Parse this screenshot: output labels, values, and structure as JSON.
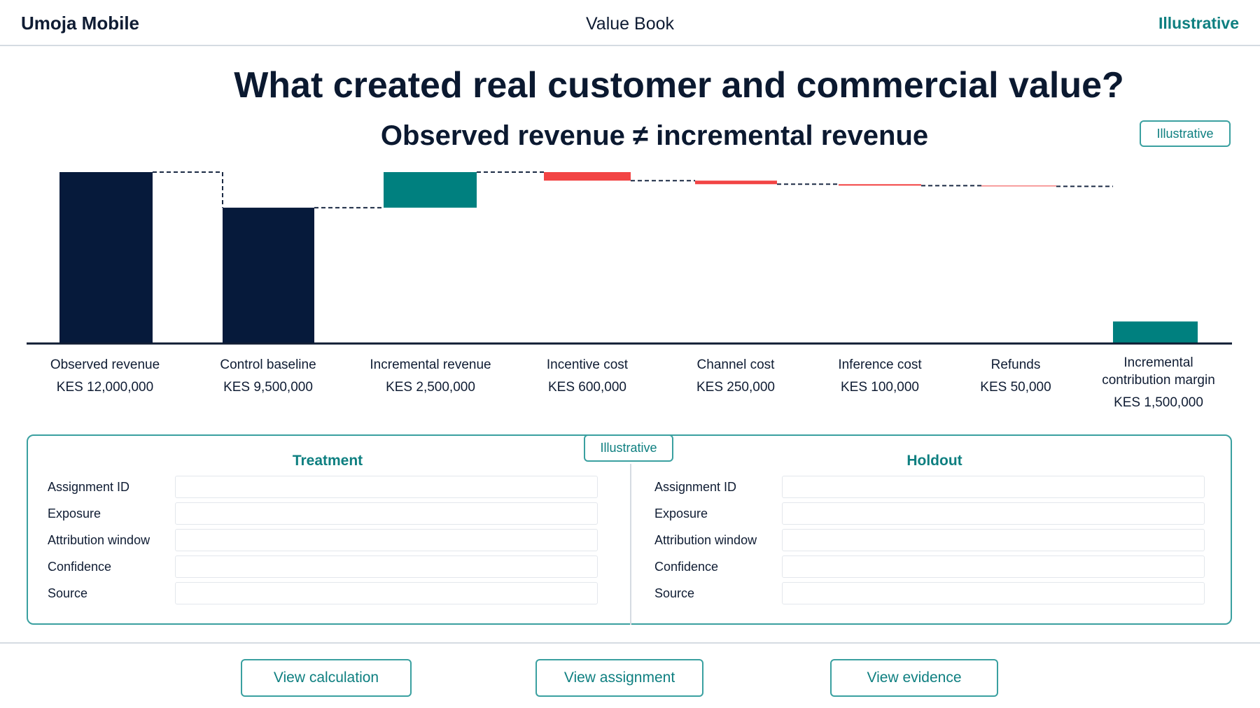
{
  "header": {
    "brand": "Umoja Mobile",
    "center_title": "Value Book",
    "tag": "Illustrative"
  },
  "title": "What created real customer and commercial value?",
  "subtitle": "Observed revenue ≠ incremental revenue",
  "illustrative_badge": "Illustrative",
  "chart_data": {
    "type": "bar",
    "categories": [
      {
        "label": "Observed revenue",
        "value_label": "KES 12,000,000"
      },
      {
        "label": "Control baseline",
        "value_label": "KES 9,500,000"
      },
      {
        "label": "Incremental revenue",
        "value_label": "KES 2,500,000"
      },
      {
        "label": "Incentive cost",
        "value_label": "KES 600,000"
      },
      {
        "label": "Channel cost",
        "value_label": "KES 250,000"
      },
      {
        "label": "Inference cost",
        "value_label": "KES 100,000"
      },
      {
        "label": "Refunds",
        "value_label": "KES 50,000"
      },
      {
        "label": "Incremental contribution margin",
        "value_label": "KES 1,500,000"
      }
    ],
    "values": [
      12000000,
      9500000,
      2500000,
      -600000,
      -250000,
      -100000,
      -50000,
      1500000
    ],
    "colors": {
      "total": "#061a3b",
      "positive": "#00807f",
      "negative": "#f24444",
      "axis": "#0f1c33"
    }
  },
  "panel": {
    "badge": "Illustrative",
    "treatment": {
      "title": "Treatment",
      "rows": [
        "Assignment ID",
        "Exposure",
        "Attribution window",
        "Confidence",
        "Source"
      ]
    },
    "holdout": {
      "title": "Holdout",
      "rows": [
        "Assignment ID",
        "Exposure",
        "Attribution window",
        "Confidence",
        "Source"
      ]
    }
  },
  "buttons": {
    "calculation": "View calculation",
    "assignment": "View assignment",
    "evidence": "View evidence"
  }
}
